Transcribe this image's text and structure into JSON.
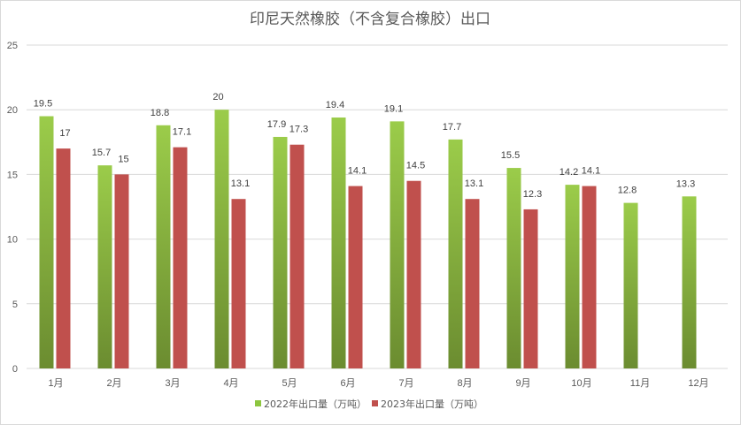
{
  "chart_data": {
    "type": "bar",
    "title": "印尼天然橡胶（不含复合橡胶）出口",
    "categories": [
      "1月",
      "2月",
      "3月",
      "4月",
      "5月",
      "6月",
      "7月",
      "8月",
      "9月",
      "10月",
      "11月",
      "12月"
    ],
    "series": [
      {
        "name": "2022年出口量（万吨）",
        "color": "#8dc63f",
        "color_dark": "#6a8a2e",
        "values": [
          19.5,
          15.7,
          18.8,
          20,
          17.9,
          19.4,
          19.1,
          17.7,
          15.5,
          14.2,
          12.8,
          13.3
        ]
      },
      {
        "name": "2023年出口量（万吨）",
        "color": "#c0504d",
        "values": [
          17,
          15,
          17.1,
          13.1,
          17.3,
          14.1,
          14.5,
          13.1,
          12.3,
          14.1,
          null,
          null
        ]
      }
    ],
    "ylim": [
      0,
      25
    ],
    "yticks": [
      0,
      5,
      10,
      15,
      20,
      25
    ],
    "grid": true,
    "legend_position": "bottom"
  }
}
